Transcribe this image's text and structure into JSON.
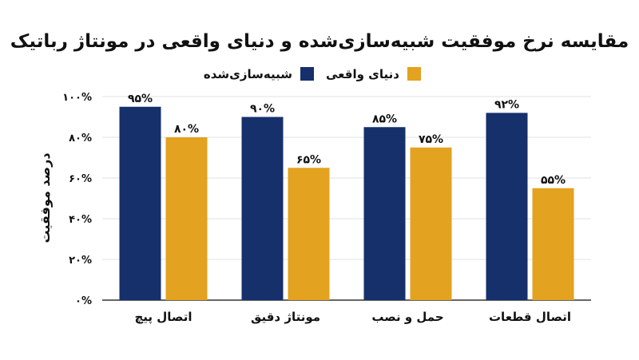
{
  "chart_data": {
    "type": "bar",
    "title": "مقایسه نرخ موفقیت شبیه‌سازی‌شده و دنیای واقعی در مونتاژ رباتیک",
    "xlabel": "",
    "ylabel": "درصد موفقیت",
    "categories": [
      "اتصال پیچ",
      "مونتاژ دقیق",
      "حمل و نصب",
      "اتصال قطعات"
    ],
    "series": [
      {
        "name": "شبیه‌سازی‌شده",
        "color": "#15306b",
        "values": [
          95,
          90,
          85,
          92
        ],
        "labels": [
          "۹۵%",
          "۹۰%",
          "۸۵%",
          "۹۲%"
        ]
      },
      {
        "name": "دنیای واقعی",
        "color": "#e3a21f",
        "values": [
          80,
          65,
          75,
          55
        ],
        "labels": [
          "۸۰%",
          "۶۵%",
          "۷۵%",
          "۵۵%"
        ]
      }
    ],
    "ylim": [
      0,
      100
    ],
    "yticks": [
      0,
      20,
      40,
      60,
      80,
      100
    ],
    "ytick_labels": [
      "۰%",
      "۲۰%",
      "۴۰%",
      "۶۰%",
      "۸۰%",
      "۱۰۰%"
    ],
    "grid": true,
    "legend_position": "top-right"
  },
  "colors": {
    "grid": "#e2e2e2",
    "axis": "#333333",
    "text": "#111111"
  }
}
